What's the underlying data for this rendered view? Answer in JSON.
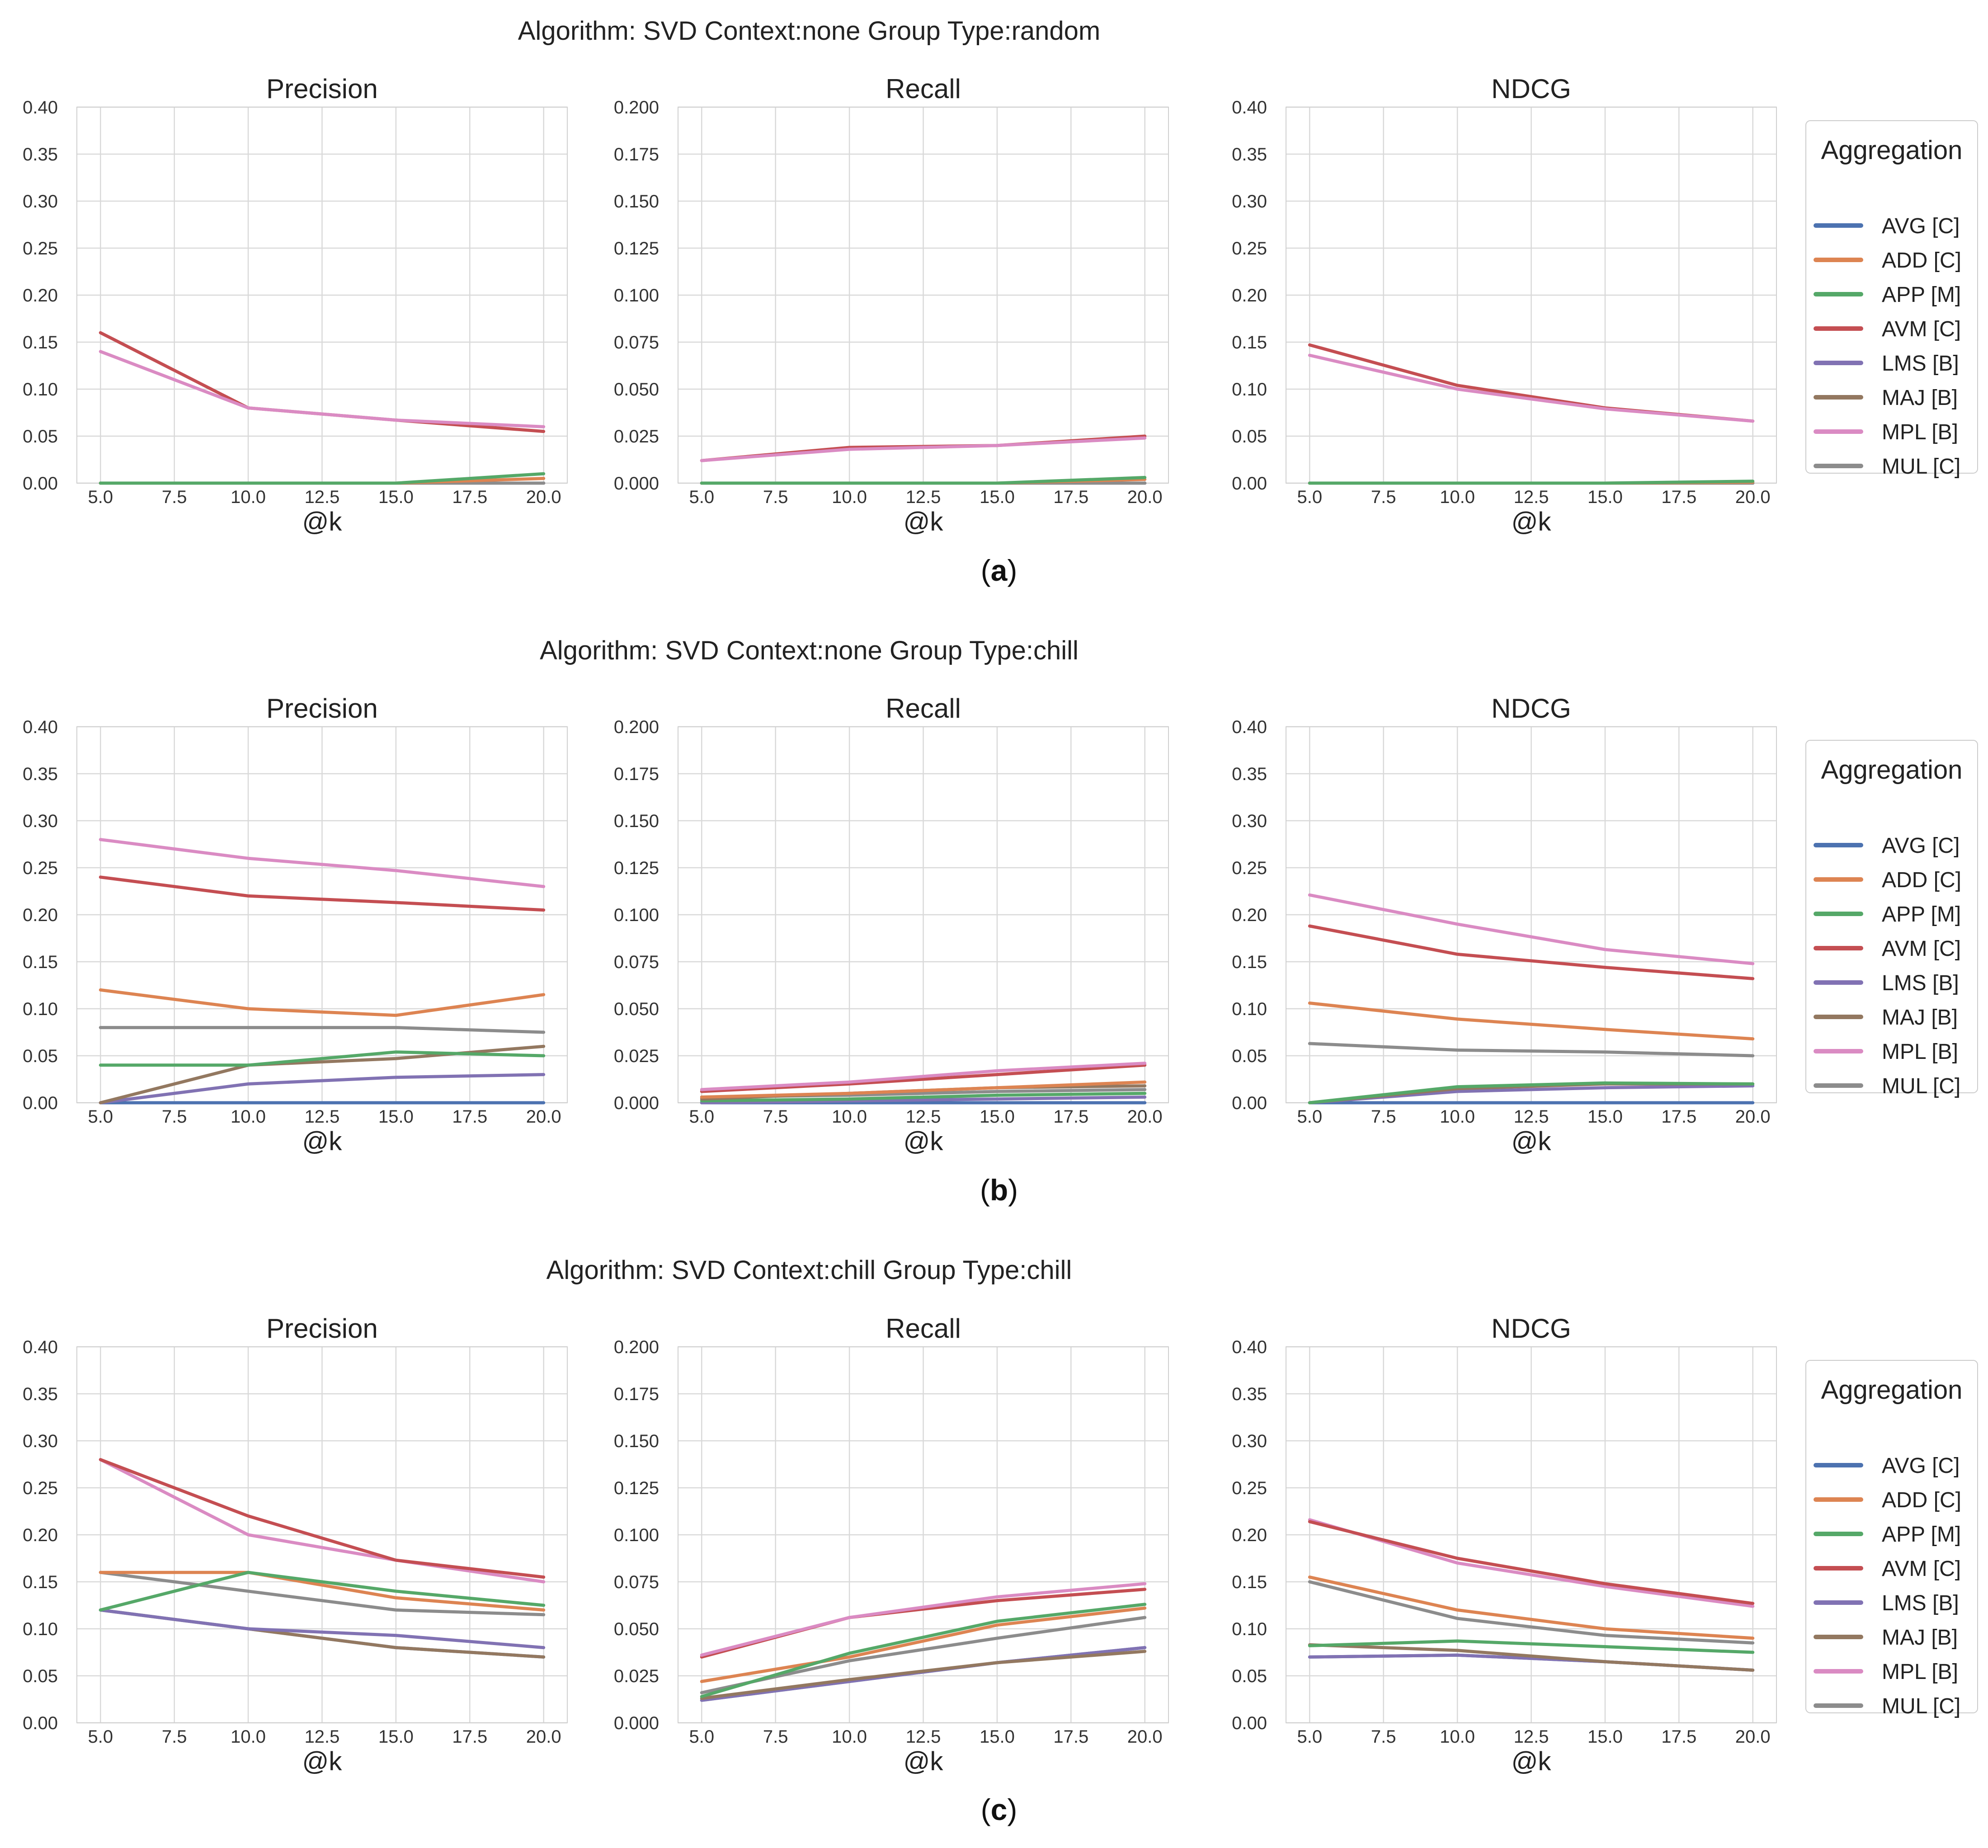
{
  "figure": {
    "legend_title": "Aggregation",
    "legend_entries": [
      "AVG [C]",
      "ADD [C]",
      "APP [M]",
      "AVM [C]",
      "LMS [B]",
      "MAJ [B]",
      "MPL [B]",
      "MUL [C]"
    ],
    "colors": {
      "AVG [C]": "#4c72b0",
      "ADD [C]": "#dd8452",
      "APP [M]": "#55a868",
      "AVM [C]": "#c44e52",
      "LMS [B]": "#8172b3",
      "MAJ [B]": "#937860",
      "MPL [B]": "#da8bc3",
      "MUL [C]": "#8c8c8c"
    },
    "rows": [
      {
        "title": "Algorithm: SVD Context:none Group Type:random",
        "caption_letter": "a"
      },
      {
        "title": "Algorithm: SVD Context:none Group Type:chill",
        "caption_letter": "b"
      },
      {
        "title": "Algorithm: SVD Context:chill Group Type:chill",
        "caption_letter": "c"
      }
    ]
  },
  "chart_data": [
    {
      "type": "line",
      "row": 0,
      "title": "Precision",
      "xlabel": "@k",
      "ylabel": "",
      "x": [
        5,
        10,
        15,
        20
      ],
      "xlim": [
        4.2,
        20.8
      ],
      "ylim": [
        0,
        0.4
      ],
      "xticks": [
        "5.0",
        "7.5",
        "10.0",
        "12.5",
        "15.0",
        "17.5",
        "20.0"
      ],
      "yticks": [
        "0.00",
        "0.05",
        "0.10",
        "0.15",
        "0.20",
        "0.25",
        "0.30",
        "0.35",
        "0.40"
      ],
      "series": [
        {
          "name": "AVG [C]",
          "values": [
            0,
            0,
            0,
            0
          ]
        },
        {
          "name": "LMS [B]",
          "values": [
            0,
            0,
            0,
            0
          ]
        },
        {
          "name": "MAJ [B]",
          "values": [
            0,
            0,
            0,
            0
          ]
        },
        {
          "name": "MUL [C]",
          "values": [
            0,
            0,
            0,
            0
          ]
        },
        {
          "name": "ADD [C]",
          "values": [
            0,
            0,
            0,
            0.005
          ]
        },
        {
          "name": "APP [M]",
          "values": [
            0,
            0,
            0,
            0.01
          ]
        },
        {
          "name": "AVM [C]",
          "values": [
            0.16,
            0.08,
            0.067,
            0.055
          ]
        },
        {
          "name": "MPL [B]",
          "values": [
            0.14,
            0.08,
            0.067,
            0.06
          ]
        }
      ]
    },
    {
      "type": "line",
      "row": 0,
      "title": "Recall",
      "xlabel": "@k",
      "ylabel": "",
      "x": [
        5,
        10,
        15,
        20
      ],
      "xlim": [
        4.2,
        20.8
      ],
      "ylim": [
        0,
        0.2
      ],
      "xticks": [
        "5.0",
        "7.5",
        "10.0",
        "12.5",
        "15.0",
        "17.5",
        "20.0"
      ],
      "yticks": [
        "0.000",
        "0.025",
        "0.050",
        "0.075",
        "0.100",
        "0.125",
        "0.150",
        "0.175",
        "0.200"
      ],
      "series": [
        {
          "name": "AVG [C]",
          "values": [
            0,
            0,
            0,
            0
          ]
        },
        {
          "name": "LMS [B]",
          "values": [
            0,
            0,
            0,
            0
          ]
        },
        {
          "name": "MAJ [B]",
          "values": [
            0,
            0,
            0,
            0
          ]
        },
        {
          "name": "MUL [C]",
          "values": [
            0,
            0,
            0,
            0
          ]
        },
        {
          "name": "ADD [C]",
          "values": [
            0,
            0,
            0,
            0.002
          ]
        },
        {
          "name": "APP [M]",
          "values": [
            0,
            0,
            0,
            0.003
          ]
        },
        {
          "name": "AVM [C]",
          "values": [
            0.012,
            0.019,
            0.02,
            0.025
          ]
        },
        {
          "name": "MPL [B]",
          "values": [
            0.012,
            0.018,
            0.02,
            0.024
          ]
        }
      ]
    },
    {
      "type": "line",
      "row": 0,
      "title": "NDCG",
      "xlabel": "@k",
      "ylabel": "",
      "x": [
        5,
        10,
        15,
        20
      ],
      "xlim": [
        4.2,
        20.8
      ],
      "ylim": [
        0,
        0.4
      ],
      "xticks": [
        "5.0",
        "7.5",
        "10.0",
        "12.5",
        "15.0",
        "17.5",
        "20.0"
      ],
      "yticks": [
        "0.00",
        "0.05",
        "0.10",
        "0.15",
        "0.20",
        "0.25",
        "0.30",
        "0.35",
        "0.40"
      ],
      "series": [
        {
          "name": "AVG [C]",
          "values": [
            0,
            0,
            0,
            0
          ]
        },
        {
          "name": "LMS [B]",
          "values": [
            0,
            0,
            0,
            0
          ]
        },
        {
          "name": "MAJ [B]",
          "values": [
            0,
            0,
            0,
            0
          ]
        },
        {
          "name": "MUL [C]",
          "values": [
            0,
            0,
            0,
            0
          ]
        },
        {
          "name": "ADD [C]",
          "values": [
            0,
            0,
            0,
            0.001
          ]
        },
        {
          "name": "APP [M]",
          "values": [
            0,
            0,
            0,
            0.002
          ]
        },
        {
          "name": "AVM [C]",
          "values": [
            0.147,
            0.104,
            0.08,
            0.066
          ]
        },
        {
          "name": "MPL [B]",
          "values": [
            0.136,
            0.1,
            0.079,
            0.066
          ]
        }
      ]
    },
    {
      "type": "line",
      "row": 1,
      "title": "Precision",
      "xlabel": "@k",
      "ylabel": "",
      "x": [
        5,
        10,
        15,
        20
      ],
      "xlim": [
        4.2,
        20.8
      ],
      "ylim": [
        0,
        0.4
      ],
      "xticks": [
        "5.0",
        "7.5",
        "10.0",
        "12.5",
        "15.0",
        "17.5",
        "20.0"
      ],
      "yticks": [
        "0.00",
        "0.05",
        "0.10",
        "0.15",
        "0.20",
        "0.25",
        "0.30",
        "0.35",
        "0.40"
      ],
      "series": [
        {
          "name": "AVG [C]",
          "values": [
            0,
            0,
            0,
            0
          ]
        },
        {
          "name": "LMS [B]",
          "values": [
            0,
            0.02,
            0.027,
            0.03
          ]
        },
        {
          "name": "MAJ [B]",
          "values": [
            0,
            0.04,
            0.047,
            0.06
          ]
        },
        {
          "name": "APP [M]",
          "values": [
            0.04,
            0.04,
            0.054,
            0.05
          ]
        },
        {
          "name": "MUL [C]",
          "values": [
            0.08,
            0.08,
            0.08,
            0.075
          ]
        },
        {
          "name": "ADD [C]",
          "values": [
            0.12,
            0.1,
            0.093,
            0.115
          ]
        },
        {
          "name": "AVM [C]",
          "values": [
            0.24,
            0.22,
            0.213,
            0.205
          ]
        },
        {
          "name": "MPL [B]",
          "values": [
            0.28,
            0.26,
            0.247,
            0.23
          ]
        }
      ]
    },
    {
      "type": "line",
      "row": 1,
      "title": "Recall",
      "xlabel": "@k",
      "ylabel": "",
      "x": [
        5,
        10,
        15,
        20
      ],
      "xlim": [
        4.2,
        20.8
      ],
      "ylim": [
        0,
        0.2
      ],
      "xticks": [
        "5.0",
        "7.5",
        "10.0",
        "12.5",
        "15.0",
        "17.5",
        "20.0"
      ],
      "yticks": [
        "0.000",
        "0.025",
        "0.050",
        "0.075",
        "0.100",
        "0.125",
        "0.150",
        "0.175",
        "0.200"
      ],
      "series": [
        {
          "name": "AVG [C]",
          "values": [
            0,
            0,
            0,
            0
          ]
        },
        {
          "name": "LMS [B]",
          "values": [
            0,
            0.001,
            0.002,
            0.003
          ]
        },
        {
          "name": "APP [M]",
          "values": [
            0.001,
            0.002,
            0.004,
            0.005
          ]
        },
        {
          "name": "MUL [C]",
          "values": [
            0.003,
            0.004,
            0.006,
            0.007
          ]
        },
        {
          "name": "MAJ [B]",
          "values": [
            0.002,
            0.005,
            0.008,
            0.009
          ]
        },
        {
          "name": "ADD [C]",
          "values": [
            0.003,
            0.005,
            0.008,
            0.011
          ]
        },
        {
          "name": "AVM [C]",
          "values": [
            0.006,
            0.01,
            0.015,
            0.02
          ]
        },
        {
          "name": "MPL [B]",
          "values": [
            0.007,
            0.011,
            0.017,
            0.021
          ]
        }
      ]
    },
    {
      "type": "line",
      "row": 1,
      "title": "NDCG",
      "xlabel": "@k",
      "ylabel": "",
      "x": [
        5,
        10,
        15,
        20
      ],
      "xlim": [
        4.2,
        20.8
      ],
      "ylim": [
        0,
        0.4
      ],
      "xticks": [
        "5.0",
        "7.5",
        "10.0",
        "12.5",
        "15.0",
        "17.5",
        "20.0"
      ],
      "yticks": [
        "0.00",
        "0.05",
        "0.10",
        "0.15",
        "0.20",
        "0.25",
        "0.30",
        "0.35",
        "0.40"
      ],
      "series": [
        {
          "name": "AVG [C]",
          "values": [
            0,
            0,
            0,
            0
          ]
        },
        {
          "name": "LMS [B]",
          "values": [
            0,
            0.012,
            0.016,
            0.018
          ]
        },
        {
          "name": "MAJ [B]",
          "values": [
            0,
            0.015,
            0.02,
            0.02
          ]
        },
        {
          "name": "APP [M]",
          "values": [
            0,
            0.017,
            0.021,
            0.02
          ]
        },
        {
          "name": "MUL [C]",
          "values": [
            0.063,
            0.056,
            0.054,
            0.05
          ]
        },
        {
          "name": "ADD [C]",
          "values": [
            0.106,
            0.089,
            0.078,
            0.068
          ]
        },
        {
          "name": "AVM [C]",
          "values": [
            0.188,
            0.158,
            0.144,
            0.132
          ]
        },
        {
          "name": "MPL [B]",
          "values": [
            0.221,
            0.19,
            0.163,
            0.148
          ]
        }
      ]
    },
    {
      "type": "line",
      "row": 2,
      "title": "Precision",
      "xlabel": "@k",
      "ylabel": "",
      "x": [
        5,
        10,
        15,
        20
      ],
      "xlim": [
        4.2,
        20.8
      ],
      "ylim": [
        0,
        0.4
      ],
      "xticks": [
        "5.0",
        "7.5",
        "10.0",
        "12.5",
        "15.0",
        "17.5",
        "20.0"
      ],
      "yticks": [
        "0.00",
        "0.05",
        "0.10",
        "0.15",
        "0.20",
        "0.25",
        "0.30",
        "0.35",
        "0.40"
      ],
      "series": [
        {
          "name": "AVG [C]",
          "values": [
            0.12,
            0.1,
            0.08,
            0.07
          ]
        },
        {
          "name": "MAJ [B]",
          "values": [
            0.12,
            0.1,
            0.08,
            0.07
          ]
        },
        {
          "name": "LMS [B]",
          "values": [
            0.12,
            0.1,
            0.093,
            0.08
          ]
        },
        {
          "name": "MUL [C]",
          "values": [
            0.16,
            0.14,
            0.12,
            0.115
          ]
        },
        {
          "name": "ADD [C]",
          "values": [
            0.16,
            0.16,
            0.133,
            0.12
          ]
        },
        {
          "name": "APP [M]",
          "values": [
            0.12,
            0.16,
            0.14,
            0.125
          ]
        },
        {
          "name": "MPL [B]",
          "values": [
            0.28,
            0.2,
            0.173,
            0.15
          ]
        },
        {
          "name": "AVM [C]",
          "values": [
            0.28,
            0.22,
            0.173,
            0.155
          ]
        }
      ]
    },
    {
      "type": "line",
      "row": 2,
      "title": "Recall",
      "xlabel": "@k",
      "ylabel": "",
      "x": [
        5,
        10,
        15,
        20
      ],
      "xlim": [
        4.2,
        20.8
      ],
      "ylim": [
        0,
        0.2
      ],
      "xticks": [
        "5.0",
        "7.5",
        "10.0",
        "12.5",
        "15.0",
        "17.5",
        "20.0"
      ],
      "yticks": [
        "0.000",
        "0.025",
        "0.050",
        "0.075",
        "0.100",
        "0.125",
        "0.150",
        "0.175",
        "0.200"
      ],
      "series": [
        {
          "name": "AVG [C]",
          "values": [
            0.012,
            0.022,
            0.032,
            0.04
          ]
        },
        {
          "name": "LMS [B]",
          "values": [
            0.012,
            0.022,
            0.032,
            0.04
          ]
        },
        {
          "name": "MAJ [B]",
          "values": [
            0.013,
            0.023,
            0.032,
            0.038
          ]
        },
        {
          "name": "MUL [C]",
          "values": [
            0.016,
            0.033,
            0.045,
            0.056
          ]
        },
        {
          "name": "ADD [C]",
          "values": [
            0.022,
            0.035,
            0.052,
            0.061
          ]
        },
        {
          "name": "APP [M]",
          "values": [
            0.014,
            0.037,
            0.054,
            0.063
          ]
        },
        {
          "name": "AVM [C]",
          "values": [
            0.035,
            0.056,
            0.065,
            0.071
          ]
        },
        {
          "name": "MPL [B]",
          "values": [
            0.036,
            0.056,
            0.067,
            0.074
          ]
        }
      ]
    },
    {
      "type": "line",
      "row": 2,
      "title": "NDCG",
      "xlabel": "@k",
      "ylabel": "",
      "x": [
        5,
        10,
        15,
        20
      ],
      "xlim": [
        4.2,
        20.8
      ],
      "ylim": [
        0,
        0.4
      ],
      "xticks": [
        "5.0",
        "7.5",
        "10.0",
        "12.5",
        "15.0",
        "17.5",
        "20.0"
      ],
      "yticks": [
        "0.00",
        "0.05",
        "0.10",
        "0.15",
        "0.20",
        "0.25",
        "0.30",
        "0.35",
        "0.40"
      ],
      "series": [
        {
          "name": "AVG [C]",
          "values": [
            0.07,
            0.072,
            0.065,
            0.056
          ]
        },
        {
          "name": "LMS [B]",
          "values": [
            0.07,
            0.072,
            0.065,
            0.056
          ]
        },
        {
          "name": "MAJ [B]",
          "values": [
            0.083,
            0.077,
            0.065,
            0.056
          ]
        },
        {
          "name": "APP [M]",
          "values": [
            0.082,
            0.087,
            0.081,
            0.075
          ]
        },
        {
          "name": "MUL [C]",
          "values": [
            0.15,
            0.111,
            0.093,
            0.085
          ]
        },
        {
          "name": "ADD [C]",
          "values": [
            0.155,
            0.12,
            0.1,
            0.09
          ]
        },
        {
          "name": "MPL [B]",
          "values": [
            0.216,
            0.17,
            0.145,
            0.124
          ]
        },
        {
          "name": "AVM [C]",
          "values": [
            0.214,
            0.175,
            0.148,
            0.127
          ]
        }
      ]
    }
  ]
}
